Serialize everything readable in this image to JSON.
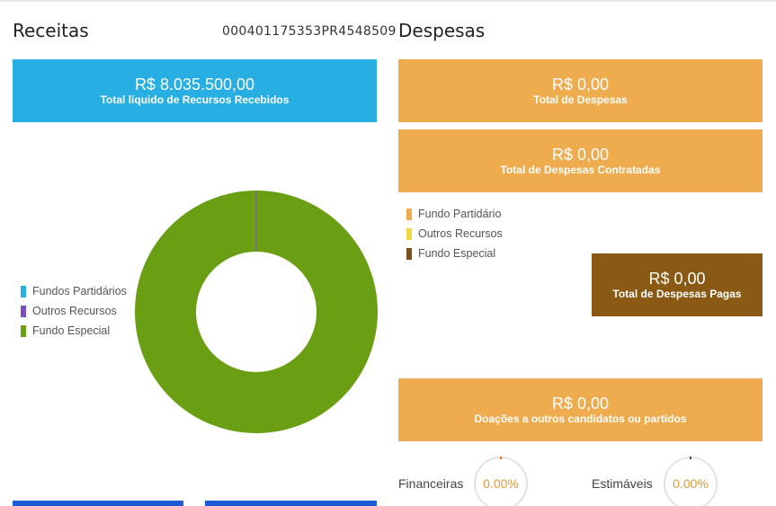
{
  "receitas": {
    "title": "Receitas",
    "protocol": "000401175353PR4548509",
    "total_card": {
      "value": "R$ 8.035.500,00",
      "label": "Total líquido de Recursos Recebidos",
      "color": "#27aee3"
    },
    "legend": [
      {
        "label": "Fundos Partidários",
        "color": "#27aee3"
      },
      {
        "label": "Outros Recursos",
        "color": "#7b4fbf"
      },
      {
        "label": "Fundo Especial",
        "color": "#6a9e13"
      }
    ],
    "donut": {
      "fundo_especial_share": 0.998,
      "outros_share": 0.002,
      "main_color": "#6a9e13",
      "slice_color": "#777777"
    }
  },
  "despesas": {
    "title": "Despesas",
    "card_total": {
      "value": "R$ 0,00",
      "label": "Total de Despesas",
      "color": "#efac4e"
    },
    "card_contratadas": {
      "value": "R$ 0,00",
      "label": "Total de Despesas Contratadas",
      "color": "#efac4e"
    },
    "legend": [
      {
        "label": "Fundo Partidário",
        "color": "#efac4e"
      },
      {
        "label": "Outros Recursos",
        "color": "#f2d740"
      },
      {
        "label": "Fundo Especial",
        "color": "#7a4f1c"
      }
    ],
    "card_pagas": {
      "value": "R$ 0,00",
      "label": "Total de Despesas Pagas",
      "color": "#8a5a14"
    },
    "card_doacoes": {
      "value": "R$ 0,00",
      "label": "Doações a outros candidatos ou partidos",
      "color": "#efac4e"
    },
    "gauges": [
      {
        "label": "Financeiras",
        "value": "0.00%"
      },
      {
        "label": "Estimáveis",
        "value": "0.00%"
      }
    ]
  },
  "accent_bottom": "#1e5ad6"
}
